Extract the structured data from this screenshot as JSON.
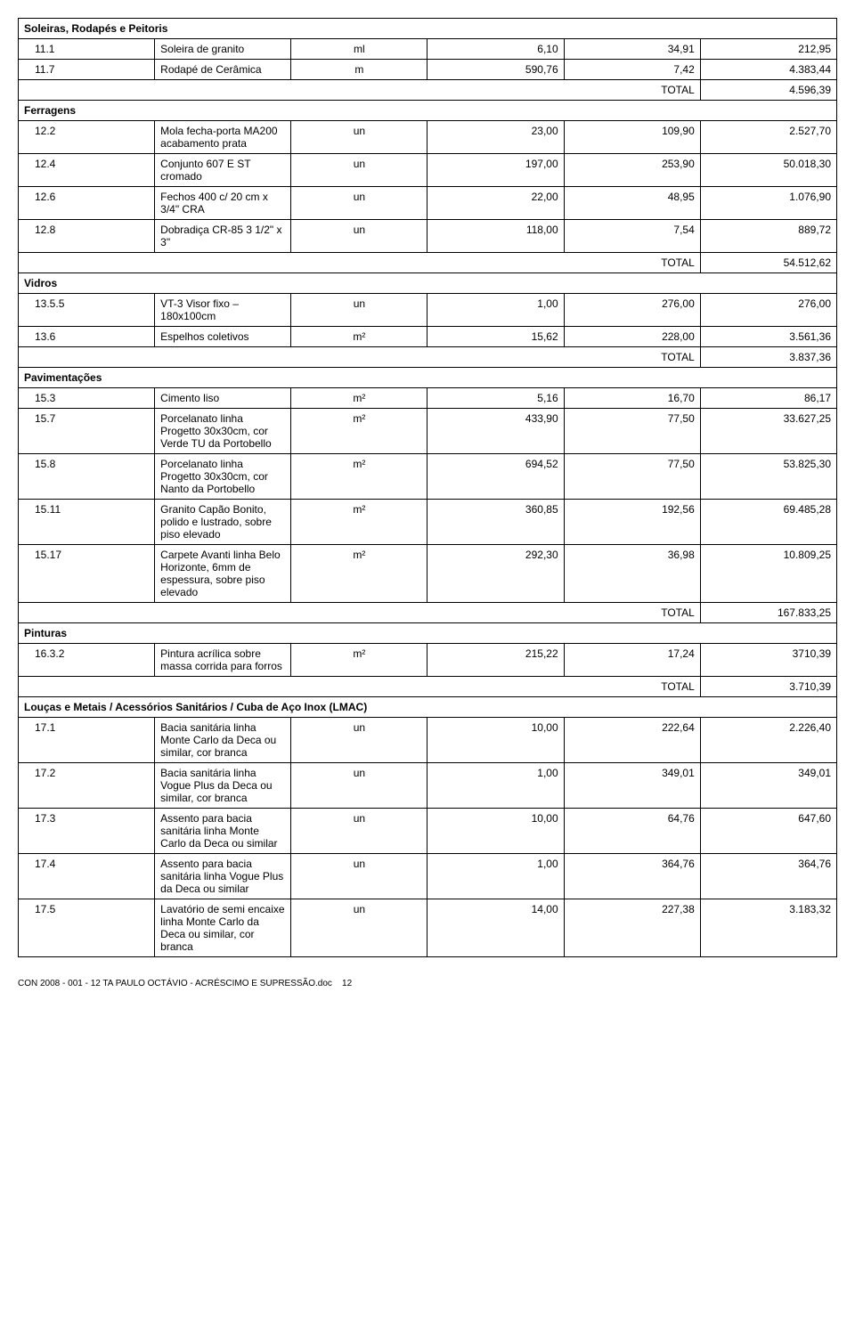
{
  "font": {
    "body_size": 12,
    "footer_size": 10,
    "color": "#000000",
    "family": "Arial"
  },
  "border_color": "#000000",
  "background_color": "#ffffff",
  "column_widths": [
    "60px",
    "370px",
    "60px",
    "110px",
    "110px",
    "110px"
  ],
  "rows": [
    {
      "t": "section",
      "label": "Soleiras, Rodapés e Peitoris"
    },
    {
      "t": "item",
      "code": "11.1",
      "desc": "Soleira de granito",
      "unit": "ml",
      "qty": "6,10",
      "pu": "34,91",
      "tot": "212,95"
    },
    {
      "t": "item",
      "code": "11.7",
      "desc": "Rodapé de Cerâmica",
      "unit": "m",
      "qty": "590,76",
      "pu": "7,42",
      "tot": "4.383,44"
    },
    {
      "t": "total",
      "label": "TOTAL",
      "value": "4.596,39"
    },
    {
      "t": "section",
      "label": "Ferragens"
    },
    {
      "t": "item",
      "code": "12.2",
      "desc": "Mola fecha-porta MA200 acabamento prata",
      "unit": "un",
      "qty": "23,00",
      "pu": "109,90",
      "tot": "2.527,70"
    },
    {
      "t": "item",
      "code": "12.4",
      "desc": "Conjunto 607 E ST cromado",
      "unit": "un",
      "qty": "197,00",
      "pu": "253,90",
      "tot": "50.018,30"
    },
    {
      "t": "item",
      "code": "12.6",
      "desc": "Fechos 400 c/ 20 cm x 3/4\" CRA",
      "unit": "un",
      "qty": "22,00",
      "pu": "48,95",
      "tot": "1.076,90"
    },
    {
      "t": "item",
      "code": "12.8",
      "desc": "Dobradiça CR-85 3 1/2\" x 3\"",
      "unit": "un",
      "qty": "118,00",
      "pu": "7,54",
      "tot": "889,72"
    },
    {
      "t": "total",
      "label": "TOTAL",
      "value": "54.512,62"
    },
    {
      "t": "section",
      "label": "Vidros"
    },
    {
      "t": "item",
      "code": "13.5.5",
      "desc": "VT-3 Visor fixo – 180x100cm",
      "unit": "un",
      "qty": "1,00",
      "pu": "276,00",
      "tot": "276,00"
    },
    {
      "t": "item",
      "code": "13.6",
      "desc": "Espelhos coletivos",
      "unit": "m²",
      "qty": "15,62",
      "pu": "228,00",
      "tot": "3.561,36"
    },
    {
      "t": "total",
      "label": "TOTAL",
      "value": "3.837,36"
    },
    {
      "t": "section",
      "label": "Pavimentações"
    },
    {
      "t": "item",
      "code": "15.3",
      "desc": "Cimento liso",
      "unit": "m²",
      "qty": "5,16",
      "pu": "16,70",
      "tot": "86,17"
    },
    {
      "t": "item",
      "code": "15.7",
      "desc": "Porcelanato linha Progetto 30x30cm, cor Verde TU da Portobello",
      "unit": "m²",
      "qty": "433,90",
      "pu": "77,50",
      "tot": "33.627,25"
    },
    {
      "t": "item",
      "code": "15.8",
      "desc": "Porcelanato linha Progetto 30x30cm, cor Nanto da Portobello",
      "unit": "m²",
      "qty": "694,52",
      "pu": "77,50",
      "tot": "53.825,30"
    },
    {
      "t": "item",
      "code": "15.11",
      "desc": "Granito Capão Bonito, polido e lustrado, sobre piso elevado",
      "unit": "m²",
      "qty": "360,85",
      "pu": "192,56",
      "tot": "69.485,28"
    },
    {
      "t": "item",
      "code": "15.17",
      "desc": "Carpete Avanti linha Belo Horizonte, 6mm de espessura, sobre piso elevado",
      "unit": "m²",
      "qty": "292,30",
      "pu": "36,98",
      "tot": "10.809,25"
    },
    {
      "t": "total",
      "label": "TOTAL",
      "value": "167.833,25"
    },
    {
      "t": "section",
      "label": "Pinturas"
    },
    {
      "t": "item",
      "code": "16.3.2",
      "desc": "Pintura acrílica sobre massa corrida para forros",
      "unit": "m²",
      "qty": "215,22",
      "pu": "17,24",
      "tot": "3710,39"
    },
    {
      "t": "total",
      "label": "TOTAL",
      "value": "3.710,39"
    },
    {
      "t": "section",
      "label": "Louças e Metais / Acessórios Sanitários / Cuba de Aço Inox (LMAC)"
    },
    {
      "t": "item",
      "code": "17.1",
      "desc": "Bacia sanitária linha Monte Carlo da Deca ou similar, cor branca",
      "unit": "un",
      "qty": "10,00",
      "pu": "222,64",
      "tot": "2.226,40"
    },
    {
      "t": "item",
      "code": "17.2",
      "desc": "Bacia sanitária linha Vogue Plus da Deca ou similar, cor branca",
      "unit": "un",
      "qty": "1,00",
      "pu": "349,01",
      "tot": "349,01"
    },
    {
      "t": "item",
      "code": "17.3",
      "desc": "Assento para bacia sanitária linha Monte Carlo da Deca ou similar",
      "unit": "un",
      "qty": "10,00",
      "pu": "64,76",
      "tot": "647,60"
    },
    {
      "t": "item",
      "code": "17.4",
      "desc": "Assento para bacia sanitária linha Vogue Plus da Deca ou similar",
      "unit": "un",
      "qty": "1,00",
      "pu": "364,76",
      "tot": "364,76"
    },
    {
      "t": "item",
      "code": "17.5",
      "desc": "Lavatório de semi encaixe linha Monte Carlo da Deca ou similar, cor branca",
      "unit": "un",
      "qty": "14,00",
      "pu": "227,38",
      "tot": "3.183,32"
    }
  ],
  "footer": {
    "text": "CON 2008 - 001 - 12 TA PAULO OCTÁVIO - ACRÉSCIMO E SUPRESSÃO.doc",
    "page": "12"
  }
}
